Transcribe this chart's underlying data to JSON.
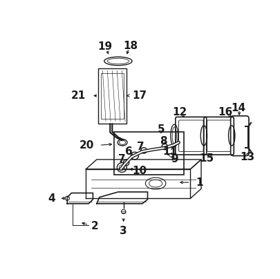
{
  "bg_color": "#ffffff",
  "line_color": "#1a1a1a",
  "fig_width": 4.06,
  "fig_height": 4.04,
  "dpi": 100,
  "label_font_size": 10
}
